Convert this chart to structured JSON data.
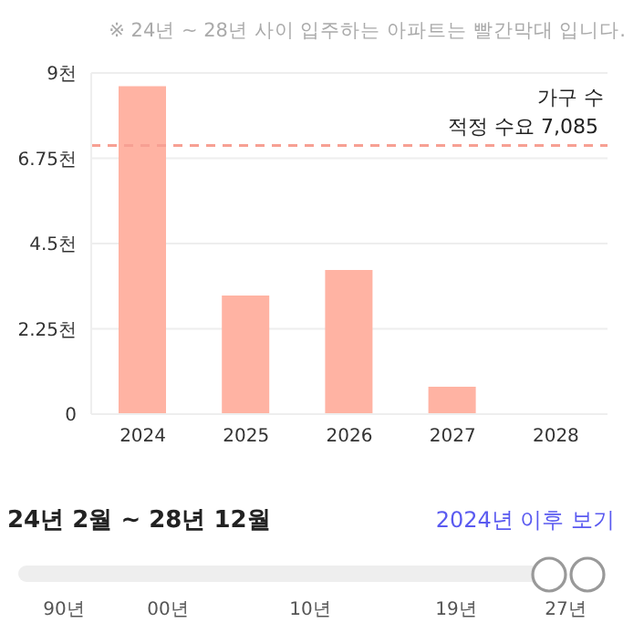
{
  "chart_data": {
    "type": "bar",
    "categories": [
      "2024",
      "2025",
      "2026",
      "2027",
      "2028"
    ],
    "ylabel": "가구 수",
    "series": [
      {
        "color": "#ffb3a3",
        "values": [
          8.65,
          3.13,
          3.8,
          0.72,
          0
        ]
      }
    ],
    "ylim": [
      0,
      9
    ],
    "yticks": [
      {
        "value": 0,
        "label": "0"
      },
      {
        "value": 2.25,
        "label": "2.25천"
      },
      {
        "value": 4.5,
        "label": "4.5천"
      },
      {
        "value": 6.75,
        "label": "6.75천"
      },
      {
        "value": 9,
        "label": "9천"
      }
    ],
    "ref_lines": [
      {
        "axis": "y",
        "value": 7.085,
        "label": "적정 수요 7,085",
        "color": "#f7a093",
        "line_style": "dashed"
      }
    ],
    "grid": "y",
    "annotations": [
      "※ 24년 ~ 28년 사이 입주하는 아파트는 빨간막대 입니다.",
      "24년 2월 ~ 28년 12월",
      "2024년 이후 보기",
      "90년",
      "00년",
      "10년",
      "19년",
      "27년"
    ]
  }
}
